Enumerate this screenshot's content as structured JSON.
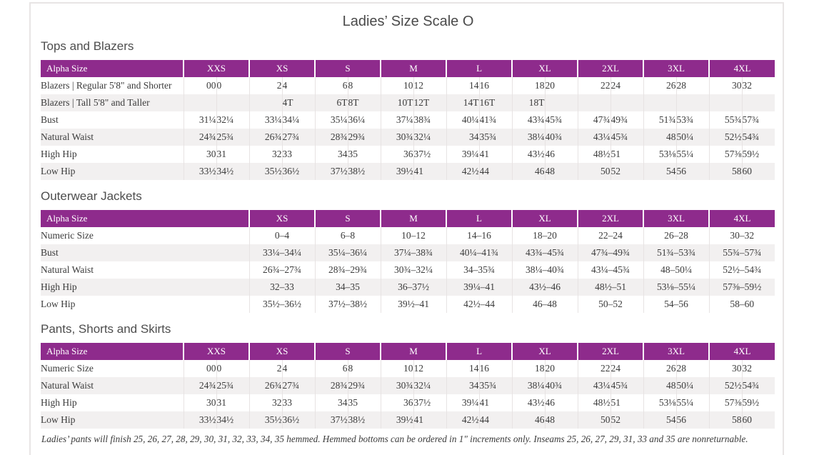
{
  "page": {
    "title": "Ladies’ Size Scale O",
    "footer_note": "Ladies’ pants will finish 25, 26, 27, 28, 29, 30, 31, 32, 33, 34, 35 hemmed. Hemmed bottoms can be ordered in 1\" increments only. Inseams 25, 26, 27, 29, 31, 33 and 35 are nonreturnable."
  },
  "colors": {
    "header_bg": "#8e2b8c",
    "header_text": "#ffffff",
    "row_stripe": "#f2f0f0",
    "body_text": "#3b3b3b",
    "cell_border": "#e7e3e3",
    "page_border": "#e8e5e5"
  },
  "sections": [
    {
      "heading": "Tops and Blazers",
      "type": "paired",
      "label_header": "Alpha Size",
      "columns": [
        "XXS",
        "XS",
        "S",
        "M",
        "L",
        "XL",
        "2XL",
        "3XL",
        "4XL"
      ],
      "rows": [
        {
          "label": "Blazers  |  Regular 5'8\" and Shorter",
          "values": [
            "00",
            "0",
            "2",
            "4",
            "6",
            "8",
            "10",
            "12",
            "14",
            "16",
            "18",
            "20",
            "22",
            "24",
            "26",
            "28",
            "30",
            "32"
          ]
        },
        {
          "label": "Blazers  |  Tall 5'8\" and Taller",
          "values": [
            "",
            "",
            "",
            "4T",
            "6T",
            "8T",
            "10T",
            "12T",
            "14T",
            "16T",
            "18T",
            "",
            "",
            "",
            "",
            "",
            "",
            ""
          ]
        },
        {
          "label": "Bust",
          "values": [
            "31¼",
            "32¼",
            "33¼",
            "34¼",
            "35¼",
            "36¼",
            "37¼",
            "38¾",
            "40¼",
            "41¾",
            "43¾",
            "45¾",
            "47¾",
            "49¾",
            "51¾",
            "53¾",
            "55¾",
            "57¾"
          ]
        },
        {
          "label": "Natural Waist",
          "values": [
            "24¾",
            "25¾",
            "26¾",
            "27¾",
            "28¾",
            "29¾",
            "30¾",
            "32¼",
            "34",
            "35¾",
            "38¼",
            "40¾",
            "43¼",
            "45¾",
            "48",
            "50¼",
            "52½",
            "54¾"
          ]
        },
        {
          "label": "High Hip",
          "values": [
            "30",
            "31",
            "32",
            "33",
            "34",
            "35",
            "36",
            "37½",
            "39¼",
            "41",
            "43½",
            "46",
            "48½",
            "51",
            "53⅛",
            "55¼",
            "57⅜",
            "59½"
          ]
        },
        {
          "label": "Low Hip",
          "values": [
            "33½",
            "34½",
            "35½",
            "36½",
            "37½",
            "38½",
            "39½",
            "41",
            "42½",
            "44",
            "46",
            "48",
            "50",
            "52",
            "54",
            "56",
            "58",
            "60"
          ]
        }
      ]
    },
    {
      "heading": "Outerwear Jackets",
      "type": "single",
      "label_header": "Alpha Size",
      "columns": [
        "XS",
        "S",
        "M",
        "L",
        "XL",
        "2XL",
        "3XL",
        "4XL"
      ],
      "rows": [
        {
          "label": "Numeric Size",
          "values": [
            "0–4",
            "6–8",
            "10–12",
            "14–16",
            "18–20",
            "22–24",
            "26–28",
            "30–32"
          ]
        },
        {
          "label": "Bust",
          "values": [
            "33¼–34¼",
            "35¼–36¼",
            "37¼–38¾",
            "40¼–41¾",
            "43¾–45¾",
            "47¾–49¾",
            "51¾–53¾",
            "55¾–57¾"
          ]
        },
        {
          "label": "Natural Waist",
          "values": [
            "26¾–27¾",
            "28¾–29¾",
            "30¾–32¼",
            "34–35¾",
            "38¼–40¾",
            "43¼–45¾",
            "48–50¼",
            "52½–54¾"
          ]
        },
        {
          "label": "High Hip",
          "values": [
            "32–33",
            "34–35",
            "36–37½",
            "39¼–41",
            "43½–46",
            "48½–51",
            "53⅛–55¼",
            "57⅜–59½"
          ]
        },
        {
          "label": "Low Hip",
          "values": [
            "35½–36½",
            "37½–38½",
            "39½–41",
            "42½–44",
            "46–48",
            "50–52",
            "54–56",
            "58–60"
          ]
        }
      ]
    },
    {
      "heading": "Pants, Shorts and Skirts",
      "type": "paired",
      "label_header": "Alpha Size",
      "columns": [
        "XXS",
        "XS",
        "S",
        "M",
        "L",
        "XL",
        "2XL",
        "3XL",
        "4XL"
      ],
      "rows": [
        {
          "label": "Numeric Size",
          "values": [
            "00",
            "0",
            "2",
            "4",
            "6",
            "8",
            "10",
            "12",
            "14",
            "16",
            "18",
            "20",
            "22",
            "24",
            "26",
            "28",
            "30",
            "32"
          ]
        },
        {
          "label": "Natural Waist",
          "values": [
            "24¾",
            "25¾",
            "26¾",
            "27¾",
            "28¾",
            "29¾",
            "30¾",
            "32¼",
            "34",
            "35¾",
            "38¼",
            "40¾",
            "43¼",
            "45¾",
            "48",
            "50¼",
            "52½",
            "54¾"
          ]
        },
        {
          "label": "High Hip",
          "values": [
            "30",
            "31",
            "32",
            "33",
            "34",
            "35",
            "36",
            "37½",
            "39¼",
            "41",
            "43½",
            "46",
            "48½",
            "51",
            "53⅛",
            "55¼",
            "57⅜",
            "59½"
          ]
        },
        {
          "label": "Low Hip",
          "values": [
            "33½",
            "34½",
            "35½",
            "36½",
            "37½",
            "38½",
            "39½",
            "41",
            "42½",
            "44",
            "46",
            "48",
            "50",
            "52",
            "54",
            "56",
            "58",
            "60"
          ]
        }
      ]
    }
  ]
}
